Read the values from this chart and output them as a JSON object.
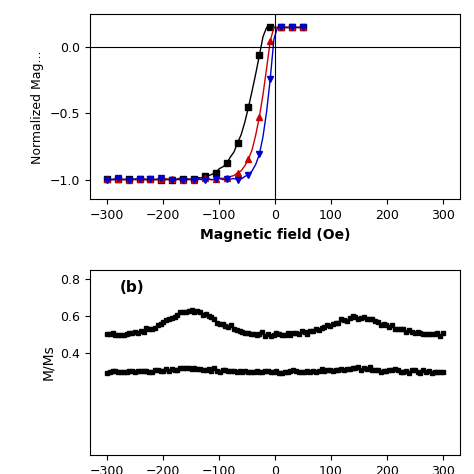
{
  "top_panel": {
    "ylabel": "Normalized Mag...",
    "xlabel": "Magnetic field (Oe)",
    "xlim": [
      -330,
      330
    ],
    "ylim": [
      -1.15,
      0.25
    ],
    "yticks": [
      0.0,
      -0.5,
      -1.0
    ],
    "xticks": [
      -300,
      -200,
      -100,
      0,
      100,
      200,
      300
    ],
    "hline_y": 0.0,
    "vline_x": 0.0,
    "colors": [
      "#000000",
      "#cc0000",
      "#0000cc"
    ],
    "markers": [
      "s",
      "^",
      "v"
    ]
  },
  "bottom_panel": {
    "ylabel": "M/Ms",
    "xlim": [
      -330,
      330
    ],
    "ylim": [
      -0.15,
      0.85
    ],
    "yticks": [
      0.8,
      0.6,
      0.4
    ],
    "label_b": "(b)",
    "color": "#000000",
    "marker": "s"
  }
}
